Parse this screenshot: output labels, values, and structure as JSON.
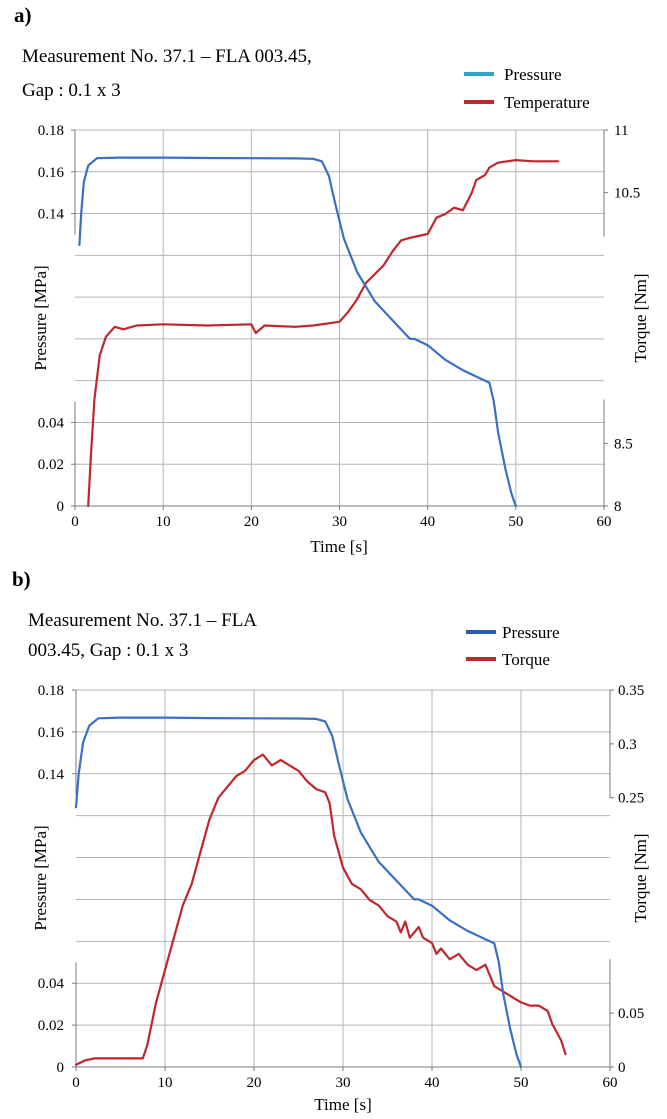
{
  "chart_data": [
    {
      "panel": "a)",
      "type": "line",
      "title_line1": "Measurement  No. 37.1 – FLA 003.45,",
      "title_line2": "Gap : 0.1 x 3",
      "xlabel": "Time [s]",
      "ylabel_left": "Pressure [MPa]",
      "ylabel_right": "Torque [Nm]",
      "xlim": [
        0,
        60
      ],
      "ylim_left": [
        0,
        0.18
      ],
      "ylim_right": [
        8,
        11
      ],
      "x_ticks": [
        "0",
        "10",
        "20",
        "30",
        "40",
        "50",
        "60"
      ],
      "y_left_ticks": [
        {
          "value": 0,
          "label": "0"
        },
        {
          "value": 0.02,
          "label": "0.02"
        },
        {
          "value": 0.04,
          "label": "0.04"
        },
        {
          "value": 0.14,
          "label": "0.14"
        },
        {
          "value": 0.16,
          "label": "0.16"
        },
        {
          "value": 0.18,
          "label": "0.18"
        }
      ],
      "y_right_ticks": [
        {
          "value": 8,
          "label": "8"
        },
        {
          "value": 8.5,
          "label": "8.5"
        },
        {
          "value": 10.5,
          "label": "10.5"
        },
        {
          "value": 11,
          "label": "11"
        }
      ],
      "grid": true,
      "legend_position": "top-right",
      "series": [
        {
          "name": "Pressure",
          "axis": "left",
          "color": "#3a6fc4",
          "legend_color": "#2fa5c8",
          "points": [
            [
              0.5,
              0.125
            ],
            [
              0.7,
              0.14
            ],
            [
              1,
              0.155
            ],
            [
              1.5,
              0.163
            ],
            [
              2.5,
              0.1665
            ],
            [
              5,
              0.1668
            ],
            [
              10,
              0.1668
            ],
            [
              15,
              0.1666
            ],
            [
              20,
              0.1665
            ],
            [
              25,
              0.1664
            ],
            [
              27,
              0.1662
            ],
            [
              28,
              0.165
            ],
            [
              28.8,
              0.158
            ],
            [
              29.5,
              0.145
            ],
            [
              30.5,
              0.128
            ],
            [
              32,
              0.112
            ],
            [
              34,
              0.098
            ],
            [
              36,
              0.089
            ],
            [
              38,
              0.08
            ],
            [
              38.5,
              0.08
            ],
            [
              40,
              0.077
            ],
            [
              42,
              0.07
            ],
            [
              44,
              0.065
            ],
            [
              46,
              0.061
            ],
            [
              47,
              0.059
            ],
            [
              47.5,
              0.05
            ],
            [
              48,
              0.035
            ],
            [
              48.8,
              0.018
            ],
            [
              49.5,
              0.006
            ],
            [
              50,
              0
            ]
          ]
        },
        {
          "name": "Temperature",
          "axis": "right",
          "color": "#c0272d",
          "legend_color": "#c0272d",
          "points": [
            [
              1.5,
              8
            ],
            [
              1.8,
              8.4
            ],
            [
              2.2,
              8.85
            ],
            [
              2.8,
              9.2
            ],
            [
              3.5,
              9.35
            ],
            [
              4.5,
              9.43
            ],
            [
              5.5,
              9.41
            ],
            [
              7,
              9.44
            ],
            [
              10,
              9.45
            ],
            [
              15,
              9.44
            ],
            [
              20,
              9.45
            ],
            [
              20.5,
              9.38
            ],
            [
              21.5,
              9.44
            ],
            [
              25,
              9.43
            ],
            [
              27,
              9.44
            ],
            [
              30,
              9.47
            ],
            [
              31,
              9.55
            ],
            [
              32,
              9.65
            ],
            [
              33,
              9.78
            ],
            [
              34,
              9.85
            ],
            [
              35,
              9.92
            ],
            [
              36,
              10.03
            ],
            [
              37,
              10.12
            ],
            [
              38,
              10.14
            ],
            [
              40,
              10.17
            ],
            [
              41,
              10.3
            ],
            [
              42,
              10.33
            ],
            [
              43,
              10.38
            ],
            [
              44,
              10.36
            ],
            [
              45,
              10.5
            ],
            [
              45.5,
              10.6
            ],
            [
              46.5,
              10.64
            ],
            [
              47,
              10.7
            ],
            [
              48,
              10.74
            ],
            [
              50,
              10.76
            ],
            [
              52,
              10.75
            ],
            [
              54.8,
              10.75
            ]
          ]
        }
      ]
    },
    {
      "panel": "b)",
      "type": "line",
      "title_line1": "Measurement  No. 37.1 – FLA",
      "title_line2": "003.45, Gap : 0.1 x 3",
      "xlabel": "Time [s]",
      "ylabel_left": "Pressure [MPa]",
      "ylabel_right": "Torque [Nm]",
      "xlim": [
        0,
        60
      ],
      "ylim_left": [
        0,
        0.18
      ],
      "ylim_right": [
        0,
        0.35
      ],
      "x_ticks": [
        "0",
        "10",
        "20",
        "30",
        "40",
        "50",
        "60"
      ],
      "y_left_ticks": [
        {
          "value": 0,
          "label": "0"
        },
        {
          "value": 0.02,
          "label": "0.02"
        },
        {
          "value": 0.04,
          "label": "0.04"
        },
        {
          "value": 0.14,
          "label": "0.14"
        },
        {
          "value": 0.16,
          "label": "0.16"
        },
        {
          "value": 0.18,
          "label": "0.18"
        }
      ],
      "y_right_ticks": [
        {
          "value": 0,
          "label": "0"
        },
        {
          "value": 0.05,
          "label": "0.05"
        },
        {
          "value": 0.25,
          "label": "0.25"
        },
        {
          "value": 0.3,
          "label": "0.3"
        },
        {
          "value": 0.35,
          "label": "0.35"
        }
      ],
      "grid": true,
      "legend_position": "top-right",
      "series": [
        {
          "name": "Pressure",
          "axis": "left",
          "color": "#3a6fc4",
          "legend_color": "#2a5db0",
          "points": [
            [
              0,
              0.124
            ],
            [
              0.3,
              0.14
            ],
            [
              0.8,
              0.155
            ],
            [
              1.5,
              0.163
            ],
            [
              2.5,
              0.1665
            ],
            [
              5,
              0.1668
            ],
            [
              10,
              0.1668
            ],
            [
              15,
              0.1666
            ],
            [
              20,
              0.1665
            ],
            [
              25,
              0.1664
            ],
            [
              27,
              0.1662
            ],
            [
              28,
              0.165
            ],
            [
              28.8,
              0.158
            ],
            [
              29.5,
              0.145
            ],
            [
              30.5,
              0.128
            ],
            [
              32,
              0.112
            ],
            [
              34,
              0.098
            ],
            [
              36,
              0.089
            ],
            [
              38,
              0.08
            ],
            [
              38.5,
              0.08
            ],
            [
              40,
              0.077
            ],
            [
              42,
              0.07
            ],
            [
              44,
              0.065
            ],
            [
              46,
              0.061
            ],
            [
              47,
              0.059
            ],
            [
              47.5,
              0.05
            ],
            [
              48,
              0.035
            ],
            [
              48.8,
              0.018
            ],
            [
              49.5,
              0.006
            ],
            [
              50,
              0
            ]
          ]
        },
        {
          "name": "Torque",
          "axis": "right",
          "color": "#c0272d",
          "legend_color": "#c0272d",
          "points": [
            [
              0,
              0.002
            ],
            [
              1,
              0.006
            ],
            [
              2,
              0.008
            ],
            [
              4,
              0.008
            ],
            [
              6,
              0.008
            ],
            [
              7.5,
              0.008
            ],
            [
              8,
              0.02
            ],
            [
              9,
              0.06
            ],
            [
              10,
              0.09
            ],
            [
              11,
              0.12
            ],
            [
              12,
              0.15
            ],
            [
              13,
              0.17
            ],
            [
              14,
              0.2
            ],
            [
              15,
              0.23
            ],
            [
              16,
              0.25
            ],
            [
              17,
              0.26
            ],
            [
              18,
              0.27
            ],
            [
              19,
              0.275
            ],
            [
              20,
              0.285
            ],
            [
              21,
              0.29
            ],
            [
              22,
              0.28
            ],
            [
              23,
              0.285
            ],
            [
              24,
              0.28
            ],
            [
              25,
              0.275
            ],
            [
              26,
              0.265
            ],
            [
              27,
              0.258
            ],
            [
              28,
              0.255
            ],
            [
              28.5,
              0.245
            ],
            [
              29,
              0.215
            ],
            [
              30,
              0.185
            ],
            [
              31,
              0.17
            ],
            [
              32,
              0.165
            ],
            [
              33,
              0.155
            ],
            [
              34,
              0.15
            ],
            [
              35,
              0.14
            ],
            [
              36,
              0.135
            ],
            [
              36.5,
              0.125
            ],
            [
              37,
              0.135
            ],
            [
              37.5,
              0.12
            ],
            [
              38,
              0.125
            ],
            [
              38.5,
              0.13
            ],
            [
              39,
              0.12
            ],
            [
              40,
              0.115
            ],
            [
              40.5,
              0.105
            ],
            [
              41,
              0.11
            ],
            [
              42,
              0.1
            ],
            [
              43,
              0.105
            ],
            [
              44,
              0.095
            ],
            [
              45,
              0.09
            ],
            [
              46,
              0.095
            ],
            [
              46.5,
              0.085
            ],
            [
              47,
              0.075
            ],
            [
              48,
              0.07
            ],
            [
              49,
              0.065
            ],
            [
              50,
              0.06
            ],
            [
              51,
              0.057
            ],
            [
              52,
              0.057
            ],
            [
              53,
              0.052
            ],
            [
              53.5,
              0.04
            ],
            [
              54.5,
              0.025
            ],
            [
              55,
              0.012
            ]
          ]
        }
      ]
    }
  ]
}
